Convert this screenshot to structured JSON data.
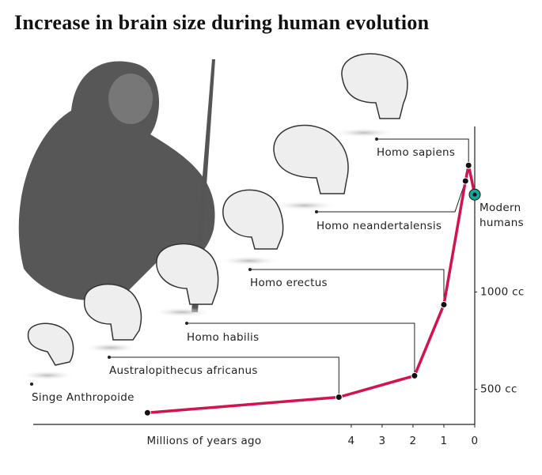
{
  "chart_data": {
    "type": "line",
    "title": "Increase in brain size during human evolution",
    "x_label": "Millions of years ago",
    "x": [
      10.6,
      4.4,
      1.95,
      1,
      0.3,
      0.2,
      0
    ],
    "values": [
      380,
      460,
      570,
      935,
      1570,
      1650,
      1500
    ],
    "point_labels": [
      "Singe Anthropoide",
      "Australopithecus africanus",
      "Homo habilis",
      "Homo erectus",
      "Homo neandertalensis",
      "Homo sapiens",
      "Modern humans"
    ],
    "color": "#d3124e",
    "highlight_color": "#1ba49b",
    "xlim": [
      14.3,
      0
    ],
    "ylim": [
      320,
      1850
    ],
    "xticks": [
      4,
      3,
      2,
      1,
      0
    ],
    "yticks": [
      {
        "value": 500,
        "label": "500 cc"
      },
      {
        "value": 1000,
        "label": "1000 cc"
      }
    ]
  }
}
